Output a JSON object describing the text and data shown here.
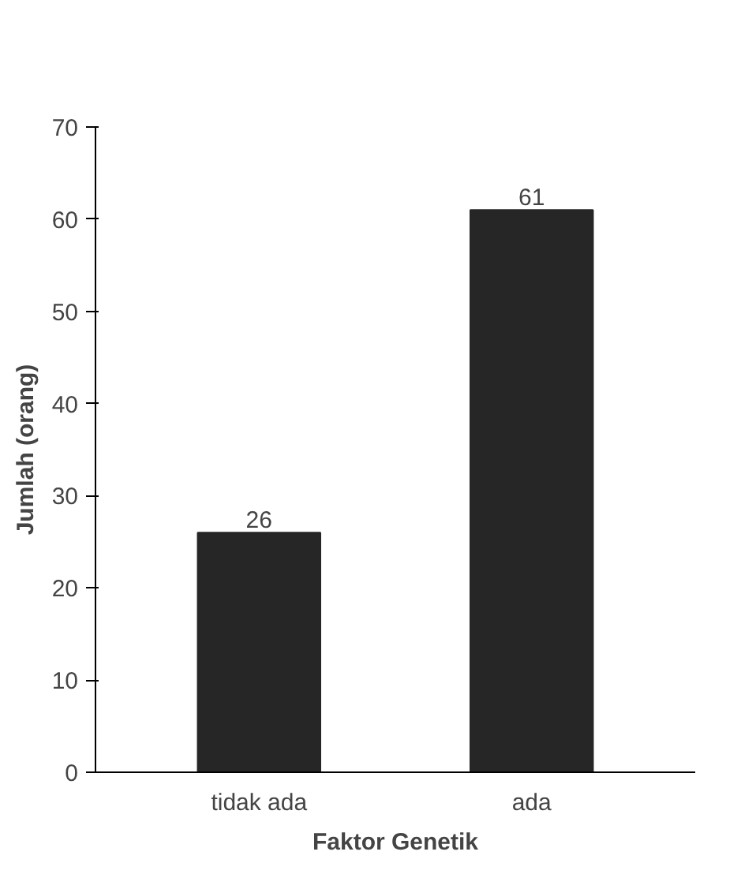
{
  "chart_data": {
    "type": "bar",
    "xlabel": "Faktor Genetik",
    "ylabel": "Jumlah (orang)",
    "categories": [
      "tidak ada",
      "ada"
    ],
    "values": [
      26,
      61
    ],
    "color": "#262626",
    "ylim": [
      0,
      70
    ],
    "yticks": [
      0,
      10,
      20,
      30,
      40,
      50,
      60,
      70
    ],
    "grid": false,
    "data_labels": true
  }
}
